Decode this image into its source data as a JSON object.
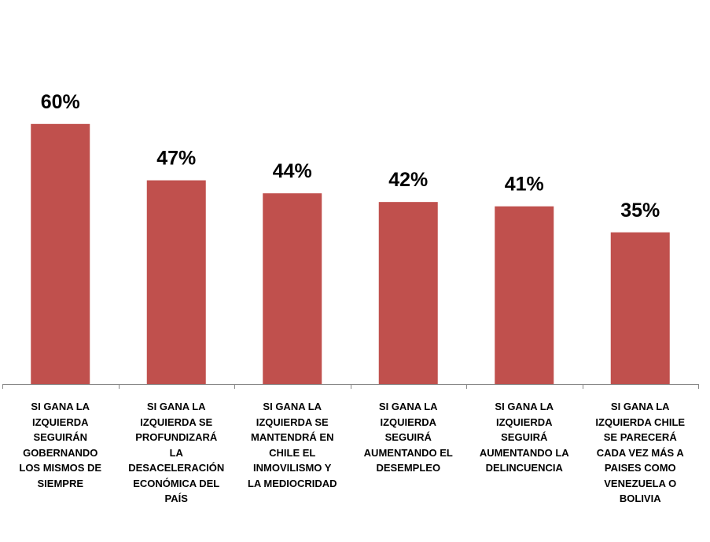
{
  "chart_data": {
    "type": "bar",
    "categories": [
      "SI GANA LA\nIZQUIERDA\nSEGUIRÁN\nGOBERNANDO\nLOS MISMOS DE\nSIEMPRE",
      "SI GANA LA\nIZQUIERDA SE\nPROFUNDIZARÁ\nLA\nDESACELERACIÓN\nECONÓMICA DEL\nPAÍS",
      "SI GANA LA\nIZQUIERDA SE\nMANTENDRÁ EN\nCHILE EL\nINMOVILISMO Y\nLA MEDIOCRIDAD",
      "SI GANA LA\nIZQUIERDA\nSEGUIRÁ\nAUMENTANDO EL\nDESEMPLEO",
      "SI GANA LA\nIZQUIERDA\nSEGUIRÁ\nAUMENTANDO LA\nDELINCUENCIA",
      "SI GANA LA\nIZQUIERDA CHILE\nSE PARECERÁ\nCADA VEZ MÁS A\nPAISES COMO\nVENEZUELA O\nBOLIVIA"
    ],
    "values": [
      60,
      47,
      44,
      42,
      41,
      35
    ],
    "value_labels": [
      "60%",
      "47%",
      "44%",
      "42%",
      "41%",
      "35%"
    ],
    "color": "#c0504d"
  }
}
